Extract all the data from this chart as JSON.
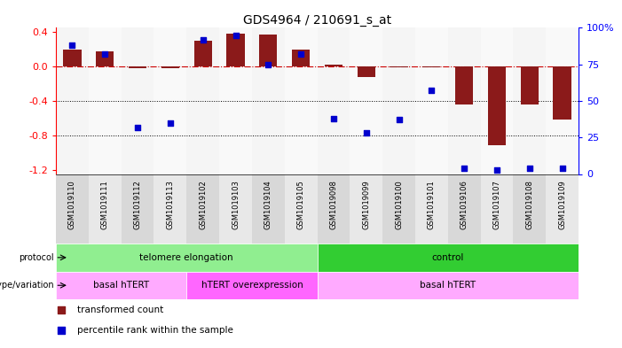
{
  "title": "GDS4964 / 210691_s_at",
  "samples": [
    "GSM1019110",
    "GSM1019111",
    "GSM1019112",
    "GSM1019113",
    "GSM1019102",
    "GSM1019103",
    "GSM1019104",
    "GSM1019105",
    "GSM1019098",
    "GSM1019099",
    "GSM1019100",
    "GSM1019101",
    "GSM1019106",
    "GSM1019107",
    "GSM1019108",
    "GSM1019109"
  ],
  "red_values": [
    0.2,
    0.18,
    -0.02,
    -0.02,
    0.3,
    0.38,
    0.37,
    0.2,
    0.02,
    -0.12,
    -0.01,
    -0.01,
    -0.44,
    -0.92,
    -0.44,
    -0.62
  ],
  "blue_values_pct": [
    88,
    82,
    32,
    35,
    92,
    95,
    75,
    82,
    38,
    28,
    37,
    57,
    4,
    3,
    4,
    4
  ],
  "ylim": [
    -1.25,
    0.45
  ],
  "yticks": [
    0.4,
    0.0,
    -0.4,
    -0.8,
    -1.2
  ],
  "y2ticks_pct": [
    100,
    75,
    50,
    25,
    0
  ],
  "bar_color": "#8B1A1A",
  "dot_color": "#0000CD",
  "hline_color": "#CC0000",
  "dot_color_right_pct": [
    100,
    75,
    50,
    25,
    0
  ],
  "protocol_telomere_color": "#90EE90",
  "protocol_control_color": "#32CD32",
  "genotype_basal1_color": "#FFAAFF",
  "genotype_hTERT_color": "#FF66FF",
  "genotype_basal2_color": "#FFAAFF",
  "protocol_telomere_label": "telomere elongation",
  "protocol_control_label": "control",
  "genotype_basal1_label": "basal hTERT",
  "genotype_hTERT_label": "hTERT overexpression",
  "genotype_basal2_label": "basal hTERT",
  "protocol_telomere_range": [
    0,
    8
  ],
  "protocol_control_range": [
    8,
    16
  ],
  "genotype_basal1_range": [
    0,
    4
  ],
  "genotype_hTERT_range": [
    4,
    8
  ],
  "genotype_basal2_range": [
    8,
    16
  ],
  "legend_red": "transformed count",
  "legend_blue": "percentile rank within the sample",
  "bar_width": 0.55,
  "dot_size": 25,
  "bg_color": "#FFFFFF",
  "xlabel_fontsize": 6,
  "ylabel_fontsize": 8,
  "title_fontsize": 10
}
